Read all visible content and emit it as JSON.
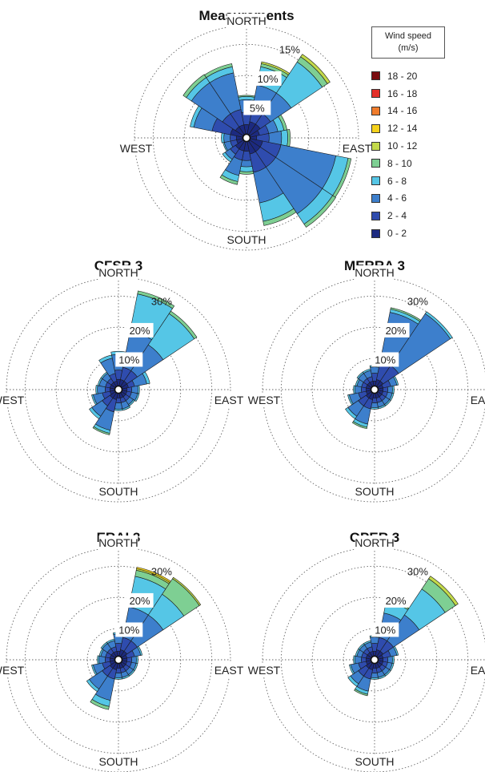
{
  "legend": {
    "title": "Wind speed (m/s)",
    "bins": [
      {
        "label": "18 - 20",
        "color": "#7a0d10"
      },
      {
        "label": "16 - 18",
        "color": "#e4302a"
      },
      {
        "label": "14 - 16",
        "color": "#f07c2c"
      },
      {
        "label": "12 - 14",
        "color": "#f5d21c"
      },
      {
        "label": "10 - 12",
        "color": "#c3d94a"
      },
      {
        "label": "8 - 10",
        "color": "#7ecf93"
      },
      {
        "label": "6 - 8",
        "color": "#55c6e6"
      },
      {
        "label": "4 - 6",
        "color": "#3d7fcc"
      },
      {
        "label": "2 - 4",
        "color": "#2f4cae"
      },
      {
        "label": "0 - 2",
        "color": "#1c2a80"
      }
    ]
  },
  "chart_data": [
    {
      "type": "windrose",
      "title": "Measurements",
      "directions": [
        "NORTH",
        "EAST",
        "SOUTH",
        "WEST"
      ],
      "rings": [
        5,
        10,
        15
      ],
      "ring_labels": [
        "5%",
        "10%",
        "15%"
      ],
      "max_percent": 18,
      "sectors": [
        {
          "dir": 0,
          "cum": [
            1.5,
            3.5,
            5.5,
            6.0,
            6.2
          ]
        },
        {
          "dir": 22.5,
          "cum": [
            2.0,
            4.0,
            8.0,
            11.0,
            11.5,
            11.8
          ]
        },
        {
          "dir": 45,
          "cum": [
            2.0,
            4.0,
            8.0,
            14.0,
            15.0,
            15.5
          ]
        },
        {
          "dir": 67.5,
          "cum": [
            1.5,
            3.0,
            4.5,
            5.5,
            6.0
          ]
        },
        {
          "dir": 90,
          "cum": [
            1.0,
            3.0,
            5.0,
            6.0,
            6.4
          ]
        },
        {
          "dir": 112.5,
          "cum": [
            2.0,
            5.0,
            14.0,
            16.0,
            16.5
          ]
        },
        {
          "dir": 135,
          "cum": [
            2.0,
            5.0,
            14.0,
            16.0,
            16.6
          ]
        },
        {
          "dir": 157.5,
          "cum": [
            2.0,
            5.0,
            10.0,
            13.0,
            13.7
          ]
        },
        {
          "dir": 180,
          "cum": [
            1.5,
            3.0,
            4.0,
            4.8,
            5.2
          ]
        },
        {
          "dir": 202.5,
          "cum": [
            1.5,
            3.0,
            5.5,
            6.5,
            7.0
          ]
        },
        {
          "dir": 225,
          "cum": [
            1.5,
            2.5,
            3.5,
            4.0
          ]
        },
        {
          "dir": 247.5,
          "cum": [
            1.0,
            2.0,
            3.0,
            3.2
          ]
        },
        {
          "dir": 270,
          "cum": [
            1.0,
            2.0,
            3.0,
            3.4
          ]
        },
        {
          "dir": 292.5,
          "cum": [
            2.0,
            5.0,
            8.0,
            8.6
          ]
        },
        {
          "dir": 315,
          "cum": [
            1.5,
            4.0,
            10.0,
            11.0,
            11.6
          ]
        },
        {
          "dir": 337.5,
          "cum": [
            1.5,
            4.0,
            10.0,
            11.0,
            11.5
          ]
        }
      ]
    },
    {
      "type": "windrose",
      "title": "CFSR 3",
      "directions": [
        "NORTH",
        "EAST",
        "SOUTH",
        "WEST"
      ],
      "rings": [
        10,
        20,
        30
      ],
      "ring_labels": [
        "10%",
        "20%",
        "30%"
      ],
      "max_percent": 36,
      "sectors": [
        {
          "dir": 0,
          "cum": [
            2.0,
            5.0,
            10.0,
            11.0
          ]
        },
        {
          "dir": 22.5,
          "cum": [
            2.0,
            6.0,
            18.0,
            30.0,
            31.0
          ]
        },
        {
          "dir": 45,
          "cum": [
            2.0,
            6.0,
            16.0,
            28.0,
            29.0
          ]
        },
        {
          "dir": 67.5,
          "cum": [
            2.0,
            4.0,
            8.0,
            9.0
          ]
        },
        {
          "dir": 90,
          "cum": [
            1.5,
            3.0,
            5.0,
            5.5
          ]
        },
        {
          "dir": 112.5,
          "cum": [
            1.5,
            3.0,
            5.0,
            5.5
          ]
        },
        {
          "dir": 135,
          "cum": [
            1.5,
            3.0,
            4.5,
            5.0
          ]
        },
        {
          "dir": 157.5,
          "cum": [
            1.5,
            3.0,
            5.0,
            5.5
          ]
        },
        {
          "dir": 180,
          "cum": [
            1.5,
            3.0,
            5.0,
            5.5
          ]
        },
        {
          "dir": 202.5,
          "cum": [
            2.0,
            6.0,
            12.0,
            13.0,
            13.5
          ]
        },
        {
          "dir": 225,
          "cum": [
            2.0,
            5.0,
            9.0,
            10.0
          ]
        },
        {
          "dir": 247.5,
          "cum": [
            1.5,
            4.0,
            7.0,
            7.5
          ]
        },
        {
          "dir": 270,
          "cum": [
            1.5,
            3.0,
            5.5,
            6.0
          ]
        },
        {
          "dir": 292.5,
          "cum": [
            1.5,
            3.0,
            5.0,
            5.5
          ]
        },
        {
          "dir": 315,
          "cum": [
            1.5,
            3.0,
            5.0,
            5.5
          ]
        },
        {
          "dir": 337.5,
          "cum": [
            1.5,
            4.0,
            9.0,
            10.0
          ]
        }
      ]
    },
    {
      "type": "windrose",
      "title": "MERRA 3",
      "directions": [
        "NORTH",
        "EAST",
        "SOUTH",
        "WEST"
      ],
      "rings": [
        10,
        20,
        30
      ],
      "ring_labels": [
        "10%",
        "20%",
        "30%"
      ],
      "max_percent": 36,
      "sectors": [
        {
          "dir": 0,
          "cum": [
            1.5,
            4.0,
            6.0,
            6.5
          ]
        },
        {
          "dir": 22.5,
          "cum": [
            2.0,
            8.0,
            24.0,
            25.0,
            25.5
          ]
        },
        {
          "dir": 45,
          "cum": [
            2.0,
            8.0,
            28.0,
            28.8
          ]
        },
        {
          "dir": 67.5,
          "cum": [
            1.5,
            4.0,
            6.0,
            6.5
          ]
        },
        {
          "dir": 90,
          "cum": [
            1.5,
            3.0,
            4.5,
            5.0
          ]
        },
        {
          "dir": 112.5,
          "cum": [
            1.5,
            3.0,
            4.5,
            5.0
          ]
        },
        {
          "dir": 135,
          "cum": [
            1.5,
            3.0,
            4.5,
            5.0
          ]
        },
        {
          "dir": 157.5,
          "cum": [
            1.5,
            3.0,
            4.5,
            5.0
          ]
        },
        {
          "dir": 180,
          "cum": [
            1.5,
            3.0,
            4.5,
            5.0
          ]
        },
        {
          "dir": 202.5,
          "cum": [
            2.0,
            5.0,
            10.0,
            11.0,
            11.5
          ]
        },
        {
          "dir": 225,
          "cum": [
            2.0,
            5.0,
            9.0,
            10.0
          ]
        },
        {
          "dir": 247.5,
          "cum": [
            1.5,
            4.0,
            7.0,
            7.5
          ]
        },
        {
          "dir": 270,
          "cum": [
            1.5,
            3.0,
            5.0,
            5.5
          ]
        },
        {
          "dir": 292.5,
          "cum": [
            1.5,
            3.0,
            4.5,
            5.0
          ]
        },
        {
          "dir": 315,
          "cum": [
            1.5,
            3.0,
            5.0,
            5.5
          ]
        },
        {
          "dir": 337.5,
          "cum": [
            1.5,
            3.0,
            5.0,
            5.5
          ]
        }
      ]
    },
    {
      "type": "windrose",
      "title": "ERAI 3",
      "directions": [
        "NORTH",
        "EAST",
        "SOUTH",
        "WEST"
      ],
      "rings": [
        10,
        20,
        30
      ],
      "ring_labels": [
        "10%",
        "20%",
        "30%"
      ],
      "max_percent": 36,
      "sectors": [
        {
          "dir": 0,
          "cum": [
            1.5,
            4.0,
            7.0,
            7.5
          ]
        },
        {
          "dir": 22.5,
          "cum": [
            2.0,
            6.0,
            16.0,
            26.0,
            28.0,
            28.5,
            29.0
          ]
        },
        {
          "dir": 45,
          "cum": [
            2.0,
            6.0,
            16.0,
            24.0,
            30.0,
            30.5
          ]
        },
        {
          "dir": 67.5,
          "cum": [
            1.5,
            4.0,
            6.0,
            6.5
          ]
        },
        {
          "dir": 90,
          "cum": [
            1.5,
            3.0,
            4.5,
            5.0
          ]
        },
        {
          "dir": 112.5,
          "cum": [
            1.5,
            3.0,
            4.5,
            5.0
          ]
        },
        {
          "dir": 135,
          "cum": [
            1.5,
            3.0,
            4.5,
            5.0
          ]
        },
        {
          "dir": 157.5,
          "cum": [
            1.5,
            3.0,
            4.5,
            5.0
          ]
        },
        {
          "dir": 180,
          "cum": [
            1.5,
            3.0,
            4.5,
            5.0
          ]
        },
        {
          "dir": 202.5,
          "cum": [
            2.0,
            5.0,
            12.0,
            14.0,
            15.0
          ]
        },
        {
          "dir": 225,
          "cum": [
            2.0,
            5.0,
            10.0,
            11.0
          ]
        },
        {
          "dir": 247.5,
          "cum": [
            1.5,
            4.0,
            7.0,
            7.5
          ]
        },
        {
          "dir": 270,
          "cum": [
            1.5,
            3.0,
            5.0,
            5.5
          ]
        },
        {
          "dir": 292.5,
          "cum": [
            1.5,
            3.0,
            4.5,
            5.0
          ]
        },
        {
          "dir": 315,
          "cum": [
            1.5,
            3.0,
            5.0,
            5.5
          ]
        },
        {
          "dir": 337.5,
          "cum": [
            1.5,
            3.0,
            5.0,
            5.5
          ]
        }
      ]
    },
    {
      "type": "windrose",
      "title": "OPER 3",
      "directions": [
        "NORTH",
        "EAST",
        "SOUTH",
        "WEST"
      ],
      "rings": [
        10,
        20,
        30
      ],
      "ring_labels": [
        "10%",
        "20%",
        "30%"
      ],
      "max_percent": 36,
      "sectors": [
        {
          "dir": 0,
          "cum": [
            1.5,
            4.0,
            6.0,
            6.5
          ]
        },
        {
          "dir": 22.5,
          "cum": [
            2.0,
            6.0,
            14.0,
            18.0,
            18.5,
            19.0
          ]
        },
        {
          "dir": 45,
          "cum": [
            2.0,
            6.0,
            16.0,
            26.0,
            30.0,
            31.0
          ]
        },
        {
          "dir": 67.5,
          "cum": [
            1.5,
            4.0,
            6.0,
            6.5
          ]
        },
        {
          "dir": 90,
          "cum": [
            1.5,
            3.0,
            4.5,
            5.0
          ]
        },
        {
          "dir": 112.5,
          "cum": [
            1.5,
            3.0,
            4.5,
            5.0
          ]
        },
        {
          "dir": 135,
          "cum": [
            1.5,
            3.0,
            4.5,
            5.0
          ]
        },
        {
          "dir": 157.5,
          "cum": [
            1.5,
            3.0,
            4.5,
            5.0
          ]
        },
        {
          "dir": 180,
          "cum": [
            1.5,
            3.0,
            4.5,
            5.0
          ]
        },
        {
          "dir": 202.5,
          "cum": [
            2.0,
            5.0,
            9.0,
            10.0,
            10.5
          ]
        },
        {
          "dir": 225,
          "cum": [
            2.0,
            5.0,
            8.0,
            9.0
          ]
        },
        {
          "dir": 247.5,
          "cum": [
            1.5,
            4.0,
            6.5,
            7.0
          ]
        },
        {
          "dir": 270,
          "cum": [
            1.5,
            3.0,
            5.0,
            5.5
          ]
        },
        {
          "dir": 292.5,
          "cum": [
            1.5,
            3.0,
            4.5,
            5.0
          ]
        },
        {
          "dir": 315,
          "cum": [
            1.5,
            3.0,
            4.5,
            5.0
          ]
        },
        {
          "dir": 337.5,
          "cum": [
            1.5,
            3.0,
            4.5,
            5.0
          ]
        }
      ]
    }
  ]
}
